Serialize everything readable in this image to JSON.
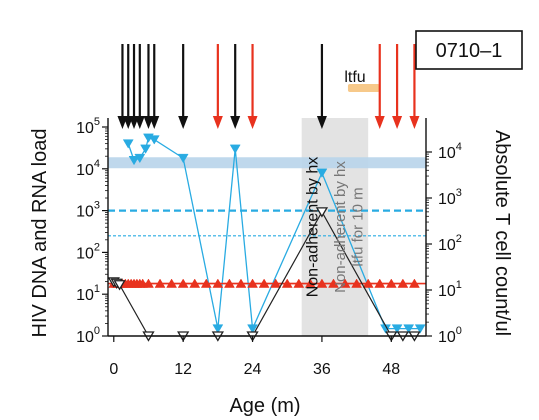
{
  "chart_data": {
    "type": "line",
    "panel_id": "0710–1",
    "xlabel": "Age (m)",
    "ylabel_left": "HIV DNA and RNA load",
    "ylabel_right": "Absolute T cell count/ul",
    "x_ticks": [
      0,
      12,
      24,
      36,
      48
    ],
    "xlim": [
      -1,
      54
    ],
    "y_left_scale": "log",
    "y_left_ticks": [
      {
        "base": "10",
        "exp": "0",
        "value": 1
      },
      {
        "base": "10",
        "exp": "1",
        "value": 10
      },
      {
        "base": "10",
        "exp": "2",
        "value": 100
      },
      {
        "base": "10",
        "exp": "3",
        "value": 1000
      },
      {
        "base": "10",
        "exp": "4",
        "value": 10000
      },
      {
        "base": "10",
        "exp": "5",
        "value": 100000
      }
    ],
    "y_right_scale": "log",
    "y_right_ticks": [
      {
        "base": "10",
        "exp": "0",
        "value": 1
      },
      {
        "base": "10",
        "exp": "1",
        "value": 10
      },
      {
        "base": "10",
        "exp": "2",
        "value": 100
      },
      {
        "base": "10",
        "exp": "3",
        "value": 1000
      },
      {
        "base": "10",
        "exp": "4",
        "value": 10000
      }
    ],
    "series": [
      {
        "key": "rna",
        "color": "#29abe2",
        "marker": "triangle-down-filled",
        "axis": "left",
        "x": [
          2.5,
          3.5,
          4.5,
          5.5,
          6,
          7,
          12,
          18,
          21,
          24,
          36,
          47,
          49,
          51,
          53
        ],
        "y": [
          40000,
          16000,
          18000,
          30000,
          55000,
          50000,
          18000,
          1.5,
          30000,
          1.5,
          8000,
          1.5,
          1.5,
          1.5,
          1.5
        ]
      },
      {
        "key": "dna",
        "color": "#e8321e",
        "marker": "triangle-up-filled",
        "axis": "left",
        "x": [
          0,
          0.5,
          1,
          1.5,
          2,
          2.5,
          3,
          3.5,
          4,
          4.5,
          5,
          6,
          8,
          10,
          12,
          14,
          16,
          18,
          20,
          22,
          24,
          26,
          28,
          30,
          32,
          34,
          36,
          38,
          40,
          42,
          44,
          46,
          48,
          50,
          52
        ],
        "y": [
          18,
          18,
          18,
          18,
          18,
          18,
          18,
          18,
          18,
          18,
          18,
          18,
          18,
          18,
          18,
          18,
          18,
          18,
          18,
          18,
          18,
          18,
          18,
          18,
          18,
          18,
          18,
          18,
          18,
          18,
          18,
          18,
          18,
          18,
          18
        ]
      },
      {
        "key": "tcell",
        "color": "#222222",
        "marker": "triangle-down-open",
        "axis": "right",
        "x": [
          0,
          0.5,
          1,
          6,
          12,
          18,
          24,
          36,
          48,
          50,
          52
        ],
        "y": [
          15,
          14,
          13,
          1,
          1,
          1,
          1,
          500,
          1,
          1,
          1
        ]
      }
    ],
    "reference_lines": [
      {
        "axis": "left",
        "value": 14000,
        "style": "band",
        "color": "#b8d4ea"
      },
      {
        "axis": "left",
        "value": 1000,
        "style": "dashed-thick",
        "color": "#29abe2"
      },
      {
        "axis": "left",
        "value": 250,
        "style": "dashed-thin",
        "color": "#29abe2"
      },
      {
        "axis": "left",
        "value": 18,
        "style": "solid",
        "color": "#e8321e"
      }
    ],
    "shaded_regions": [
      {
        "x_start": 32.5,
        "x_end": 44,
        "color": "#e3e3e3"
      }
    ],
    "treatment_arrows": [
      {
        "x": 1.5,
        "color": "#111111"
      },
      {
        "x": 2.5,
        "color": "#111111"
      },
      {
        "x": 3.5,
        "color": "#111111"
      },
      {
        "x": 4.5,
        "color": "#111111"
      },
      {
        "x": 6,
        "color": "#111111"
      },
      {
        "x": 7,
        "color": "#111111"
      },
      {
        "x": 12,
        "color": "#111111"
      },
      {
        "x": 18,
        "color": "#e8321e"
      },
      {
        "x": 21,
        "color": "#111111"
      },
      {
        "x": 24,
        "color": "#e8321e"
      },
      {
        "x": 36,
        "color": "#111111"
      },
      {
        "x": 46,
        "color": "#e8321e"
      },
      {
        "x": 49,
        "color": "#e8321e"
      },
      {
        "x": 52,
        "color": "#e8321e"
      }
    ],
    "ltfu_bar": {
      "x_start": 40.5,
      "x_end": 46,
      "label": "ltfu",
      "color": "#f7c98a"
    },
    "annotations": [
      {
        "text": "Non-adherent by hx",
        "x": 35.2,
        "style": "black"
      },
      {
        "text": "Non-adherent by hx",
        "x": 40,
        "style": "grey"
      },
      {
        "text": "ltfu for 10 m",
        "x": 43,
        "style": "grey"
      }
    ]
  }
}
